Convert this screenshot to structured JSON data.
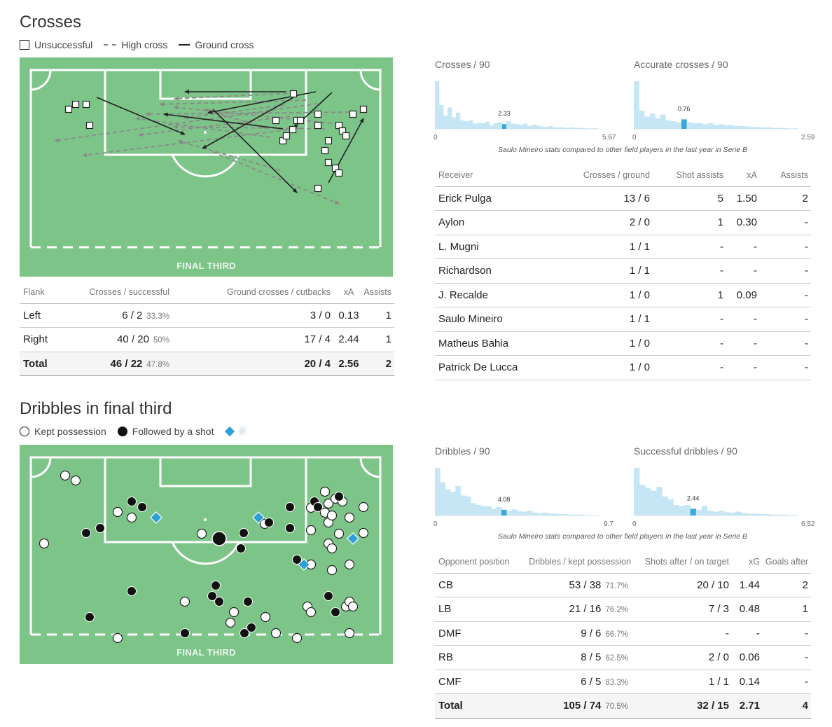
{
  "crosses": {
    "title": "Crosses",
    "legend": {
      "unsuccessful": "Unsuccessful",
      "high": "High cross",
      "ground": "Ground cross"
    },
    "pitch_label": "FINAL THIRD",
    "flank_table": {
      "headers": [
        "Flank",
        "Crosses / successful",
        "Ground crosses / cutbacks",
        "xA",
        "Assists"
      ],
      "rows": [
        {
          "flank": "Left",
          "crosses": "6 / 2",
          "pct": "33.3%",
          "ground": "3 / 0",
          "xa": "0.13",
          "assists": "1"
        },
        {
          "flank": "Right",
          "crosses": "40 / 20",
          "pct": "50%",
          "ground": "17 / 4",
          "xa": "2.44",
          "assists": "1"
        }
      ],
      "total": {
        "flank": "Total",
        "crosses": "46 / 22",
        "pct": "47.8%",
        "ground": "20 / 4",
        "xa": "2.56",
        "assists": "2"
      }
    },
    "hist1": {
      "title": "Crosses / 90",
      "value": "2.33",
      "min": "0",
      "max": "5.67"
    },
    "hist2": {
      "title": "Accurate crosses / 90",
      "value": "0.76",
      "min": "0",
      "max": "2.59"
    },
    "caption": "Saulo Mineiro stats compared to other field players in the last year in Serie B",
    "receiver_table": {
      "headers": [
        "Receiver",
        "Crosses / ground",
        "Shot assists",
        "xA",
        "Assists"
      ],
      "rows": [
        [
          "Erick Pulga",
          "13 / 6",
          "5",
          "1.50",
          "2"
        ],
        [
          "Aylon",
          "2 / 0",
          "1",
          "0.30",
          "-"
        ],
        [
          "L. Mugni",
          "1 / 1",
          "-",
          "-",
          "-"
        ],
        [
          "Richardson",
          "1 / 1",
          "-",
          "-",
          "-"
        ],
        [
          "J. Recalde",
          "1 / 0",
          "1",
          "0.09",
          "-"
        ],
        [
          "Saulo Mineiro",
          "1 / 1",
          "-",
          "-",
          "-"
        ],
        [
          "Matheus Bahia",
          "1 / 0",
          "-",
          "-",
          "-"
        ],
        [
          "Patrick De Lucca",
          "1 / 0",
          "-",
          "-",
          "-"
        ]
      ]
    }
  },
  "dribbles": {
    "title": "Dribbles in final third",
    "legend": {
      "kept": "Kept possession",
      "shot": "Followed by a shot",
      "third": "F              "
    },
    "pitch_label": "FINAL THIRD",
    "hist1": {
      "title": "Dribbles / 90",
      "value": "4.08",
      "min": "0",
      "max": "9.7"
    },
    "hist2": {
      "title": "Successful dribbles / 90",
      "value": "2.44",
      "min": "0",
      "max": "6.52"
    },
    "caption": "Saulo Mineiro stats compared to other field players in the last year in Serie B",
    "position_table": {
      "headers": [
        "Opponent position",
        "Dribbles / kept possession",
        "Shots after / on target",
        "xG",
        "Goals after"
      ],
      "rows": [
        {
          "pos": "CB",
          "dribbles": "53 / 38",
          "pct": "71.7%",
          "shots": "20 / 10",
          "xg": "1.44",
          "goals": "2"
        },
        {
          "pos": "LB",
          "dribbles": "21 / 16",
          "pct": "76.2%",
          "shots": "7 / 3",
          "xg": "0.48",
          "goals": "1"
        },
        {
          "pos": "DMF",
          "dribbles": "9 / 6",
          "pct": "66.7%",
          "shots": "-",
          "xg": "-",
          "goals": "-"
        },
        {
          "pos": "RB",
          "dribbles": "8 / 5",
          "pct": "62.5%",
          "shots": "2 / 0",
          "xg": "0.06",
          "goals": "-"
        },
        {
          "pos": "CMF",
          "dribbles": "6 / 5",
          "pct": "83.3%",
          "shots": "1 / 1",
          "xg": "0.14",
          "goals": "-"
        }
      ],
      "total": {
        "pos": "Total",
        "dribbles": "105 / 74",
        "pct": "70.5%",
        "shots": "32 / 15",
        "xg": "2.71",
        "goals": "4"
      }
    }
  },
  "colors": {
    "pitch": "#7dc489",
    "hist_bar": "#c6e6f5",
    "hist_highlight": "#3ba7d9",
    "diamond": "#2b9fd8"
  },
  "chart_data": [
    {
      "type": "bar",
      "title": "Crosses / 90",
      "value": 2.33,
      "xlim": [
        0,
        5.67
      ],
      "values": [
        100,
        50,
        28,
        45,
        24,
        34,
        18,
        16,
        18,
        11,
        13,
        12,
        15,
        8,
        12,
        14,
        10,
        16,
        11,
        10,
        8,
        11,
        6,
        9,
        7,
        5,
        4,
        6,
        3,
        3,
        3,
        2,
        3,
        2,
        2,
        2,
        1,
        1,
        1
      ]
    },
    {
      "type": "bar",
      "title": "Accurate crosses / 90",
      "value": 0.76,
      "xlim": [
        0,
        2.59
      ],
      "values": [
        100,
        38,
        26,
        32,
        22,
        30,
        18,
        16,
        14,
        20,
        14,
        12,
        12,
        10,
        12,
        8,
        10,
        8,
        8,
        6,
        6,
        5,
        4,
        4,
        3,
        3,
        2,
        2,
        2,
        1,
        1
      ]
    },
    {
      "type": "bar",
      "title": "Dribbles / 90",
      "value": 4.08,
      "xlim": [
        0,
        9.7
      ],
      "values": [
        100,
        70,
        55,
        50,
        62,
        42,
        40,
        26,
        22,
        20,
        20,
        14,
        18,
        12,
        10,
        13,
        9,
        8,
        10,
        6,
        5,
        6,
        4,
        4,
        3,
        3,
        2,
        2,
        2,
        1,
        1,
        1
      ]
    },
    {
      "type": "bar",
      "title": "Successful dribbles / 90",
      "value": 2.44,
      "xlim": [
        0,
        6.52
      ],
      "values": [
        100,
        64,
        58,
        52,
        60,
        40,
        34,
        22,
        20,
        22,
        14,
        12,
        20,
        10,
        8,
        10,
        7,
        6,
        8,
        5,
        4,
        4,
        3,
        3,
        2,
        2,
        2,
        1,
        1
      ]
    },
    {
      "type": "scatter",
      "title": "Crosses",
      "squares": [
        [
          98,
          156
        ],
        [
          108,
          149
        ],
        [
          123,
          149
        ],
        [
          128,
          179
        ],
        [
          394,
          172
        ],
        [
          404,
          201
        ],
        [
          409,
          194
        ],
        [
          418,
          185
        ],
        [
          419,
          134
        ],
        [
          424,
          172
        ],
        [
          429,
          172
        ],
        [
          454,
          163
        ],
        [
          454,
          179
        ],
        [
          484,
          179
        ],
        [
          489,
          187
        ],
        [
          494,
          194
        ],
        [
          504,
          163
        ],
        [
          519,
          156
        ],
        [
          464,
          215
        ],
        [
          469,
          201
        ],
        [
          469,
          232
        ],
        [
          479,
          240
        ],
        [
          484,
          247
        ],
        [
          454,
          269
        ]
      ],
      "solid_lines": [
        [
          [
            138,
            139
          ],
          [
            264,
            192
          ]
        ],
        [
          [
            409,
            131
          ],
          [
            264,
            131
          ]
        ],
        [
          [
            451,
            131
          ],
          [
            297,
            161
          ]
        ],
        [
          [
            419,
            139
          ],
          [
            289,
            212
          ]
        ],
        [
          [
            404,
            184
          ],
          [
            234,
            163
          ]
        ],
        [
          [
            474,
            132
          ],
          [
            419,
            183
          ]
        ],
        [
          [
            304,
            156
          ],
          [
            424,
            275
          ]
        ],
        [
          [
            469,
            261
          ],
          [
            519,
            169
          ]
        ]
      ],
      "dashed_lines": [
        [
          [
            454,
            148
          ],
          [
            78,
            201
          ]
        ],
        [
          [
            509,
            160
          ],
          [
            208,
            163
          ]
        ],
        [
          [
            430,
            183
          ],
          [
            118,
            222
          ]
        ],
        [
          [
            414,
            166
          ],
          [
            198,
            193
          ]
        ],
        [
          [
            474,
            176
          ],
          [
            248,
            153
          ]
        ],
        [
          [
            420,
            133
          ],
          [
            249,
            141
          ]
        ],
        [
          [
            379,
            183
          ],
          [
            293,
            156
          ]
        ],
        [
          [
            464,
            184
          ],
          [
            248,
            181
          ]
        ],
        [
          [
            304,
            217
          ],
          [
            484,
            291
          ]
        ],
        [
          [
            437,
            143
          ],
          [
            228,
            149
          ]
        ],
        [
          [
            386,
            196
          ],
          [
            194,
            169
          ]
        ],
        [
          [
            406,
            150
          ],
          [
            263,
            168
          ]
        ],
        [
          [
            400,
            243
          ],
          [
            254,
            201
          ]
        ]
      ]
    },
    {
      "type": "scatter",
      "title": "Dribbles in final third",
      "kept": [
        [
          93,
          679
        ],
        [
          108,
          686
        ],
        [
          63,
          776
        ],
        [
          168,
          731
        ],
        [
          188,
          739
        ],
        [
          288,
          762
        ],
        [
          378,
          748
        ],
        [
          444,
          725
        ],
        [
          444,
          757
        ],
        [
          464,
          702
        ],
        [
          469,
          719
        ],
        [
          464,
          732
        ],
        [
          469,
          746
        ],
        [
          474,
          736
        ],
        [
          479,
          712
        ],
        [
          489,
          716
        ],
        [
          499,
          739
        ],
        [
          519,
          724
        ],
        [
          519,
          761
        ],
        [
          484,
          762
        ],
        [
          469,
          776
        ],
        [
          474,
          783
        ],
        [
          444,
          806
        ],
        [
          474,
          814
        ],
        [
          499,
          806
        ],
        [
          264,
          859
        ],
        [
          334,
          874
        ],
        [
          329,
          889
        ],
        [
          379,
          881
        ],
        [
          439,
          866
        ],
        [
          444,
          874
        ],
        [
          494,
          866
        ],
        [
          499,
          859
        ],
        [
          504,
          866
        ],
        [
          394,
          904
        ],
        [
          424,
          911
        ],
        [
          499,
          904
        ],
        [
          168,
          911
        ]
      ],
      "shot": [
        [
          188,
          716
        ],
        [
          203,
          724
        ],
        [
          143,
          754
        ],
        [
          123,
          761
        ],
        [
          313,
          769
        ],
        [
          348,
          761
        ],
        [
          344,
          783
        ],
        [
          384,
          746
        ],
        [
          414,
          724
        ],
        [
          414,
          754
        ],
        [
          449,
          716
        ],
        [
          454,
          724
        ],
        [
          484,
          709
        ],
        [
          424,
          799
        ],
        [
          308,
          836
        ],
        [
          303,
          851
        ],
        [
          313,
          859
        ],
        [
          354,
          859
        ],
        [
          188,
          844
        ],
        [
          128,
          881
        ],
        [
          264,
          904
        ],
        [
          349,
          904
        ],
        [
          359,
          896
        ],
        [
          469,
          851
        ],
        [
          479,
          874
        ]
      ],
      "shot_large": [
        [
          313,
          769
        ]
      ],
      "diamonds": [
        [
          223,
          739
        ],
        [
          369,
          739
        ],
        [
          504,
          769
        ],
        [
          434,
          806
        ]
      ]
    }
  ]
}
